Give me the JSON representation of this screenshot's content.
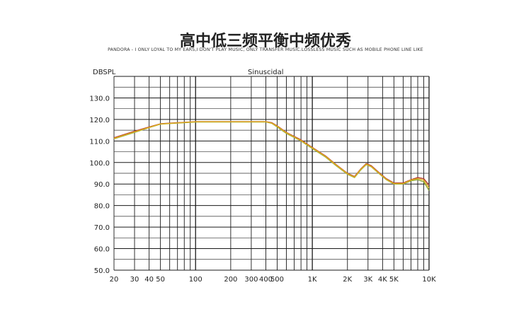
{
  "page": {
    "title": "高中低三频平衡中频优秀",
    "subtitle": "PANDORA - I ONLY LOYAL TO MY EARS,I DON'T PLAY MUSIC, ONLY TRANSFER MUSIC.LOSSLESS MUSIC SUCH AS MOBILE PHONE LINE LIKE"
  },
  "chart_data": {
    "type": "line",
    "title": "高中低三频平衡中频优秀",
    "subtitle": "PANDORA - I ONLY LOYAL TO MY EARS,I DON'T PLAY MUSIC, ONLY TRANSFER MUSIC.LOSSLESS MUSIC SUCH AS MOBILE PHONE LINE LIKE",
    "ylabel": "DBSPL",
    "annotation": "Sinuscidal",
    "x_scale": "log",
    "xlim": [
      20,
      10000
    ],
    "ylim": [
      50,
      140
    ],
    "grid": true,
    "x_ticks": [
      20,
      30,
      40,
      50,
      100,
      200,
      300,
      400,
      500,
      1000,
      2000,
      3000,
      4000,
      5000,
      10000
    ],
    "x_tick_labels": [
      "20",
      "30",
      "40",
      "50",
      "100",
      "200",
      "300",
      "400",
      "500",
      "1K",
      "2K",
      "3K",
      "4K",
      "5K",
      "10K"
    ],
    "y_ticks": [
      50,
      60,
      70,
      80,
      90,
      100,
      110,
      120,
      130
    ],
    "y_tick_labels": [
      "50.0",
      "60.0",
      "70.0",
      "80.0",
      "90.0",
      "100.0",
      "110.0",
      "120.0",
      "130.0"
    ],
    "series": [
      {
        "color": "#b03a2e",
        "x": [
          20,
          30,
          40,
          50,
          70,
          100,
          150,
          200,
          300,
          400,
          450,
          500,
          600,
          800,
          1000,
          1300,
          1600,
          2000,
          2300,
          2600,
          2900,
          3200,
          3700,
          4300,
          5000,
          6000,
          7000,
          8000,
          9000,
          10000
        ],
        "y": [
          111.5,
          114.5,
          116.5,
          118,
          118.5,
          119,
          119,
          119,
          119,
          119,
          118.5,
          117,
          114,
          110.5,
          107,
          103,
          99,
          95,
          93.5,
          97,
          99.5,
          98.5,
          95.5,
          92.5,
          90.5,
          90.5,
          92,
          93,
          92.5,
          89.5
        ]
      },
      {
        "color": "#8faa3a",
        "x": [
          20,
          30,
          40,
          50,
          70,
          100,
          150,
          200,
          300,
          400,
          450,
          500,
          600,
          800,
          1000,
          1300,
          1600,
          2000,
          2300,
          2600,
          2900,
          3200,
          3700,
          4300,
          5000,
          6000,
          7000,
          8000,
          9000,
          10000
        ],
        "y": [
          111,
          114,
          116.2,
          117.8,
          118.3,
          118.8,
          118.8,
          118.8,
          118.8,
          118.8,
          118.2,
          116.5,
          113.5,
          110,
          106.5,
          102.5,
          98.5,
          94.5,
          93,
          96.5,
          99,
          98,
          95,
          92,
          90,
          90,
          91.5,
          92,
          91,
          87
        ]
      },
      {
        "color": "#e0b020",
        "x": [
          20,
          30,
          40,
          50,
          70,
          100,
          150,
          200,
          300,
          400,
          450,
          500,
          600,
          800,
          1000,
          1300,
          1600,
          2000,
          2300,
          2600,
          2900,
          3200,
          3700,
          4300,
          5000,
          6000,
          7000,
          8000,
          9000,
          10000
        ],
        "y": [
          111.2,
          114.2,
          116.3,
          117.9,
          118.4,
          118.9,
          118.9,
          118.9,
          118.9,
          118.9,
          118.3,
          116.8,
          113.8,
          110.2,
          106.8,
          102.8,
          98.8,
          94.8,
          93.2,
          96.8,
          99.2,
          98.2,
          95.2,
          92.2,
          90.2,
          90.2,
          91.8,
          92.5,
          91.8,
          88.2
        ]
      }
    ]
  }
}
